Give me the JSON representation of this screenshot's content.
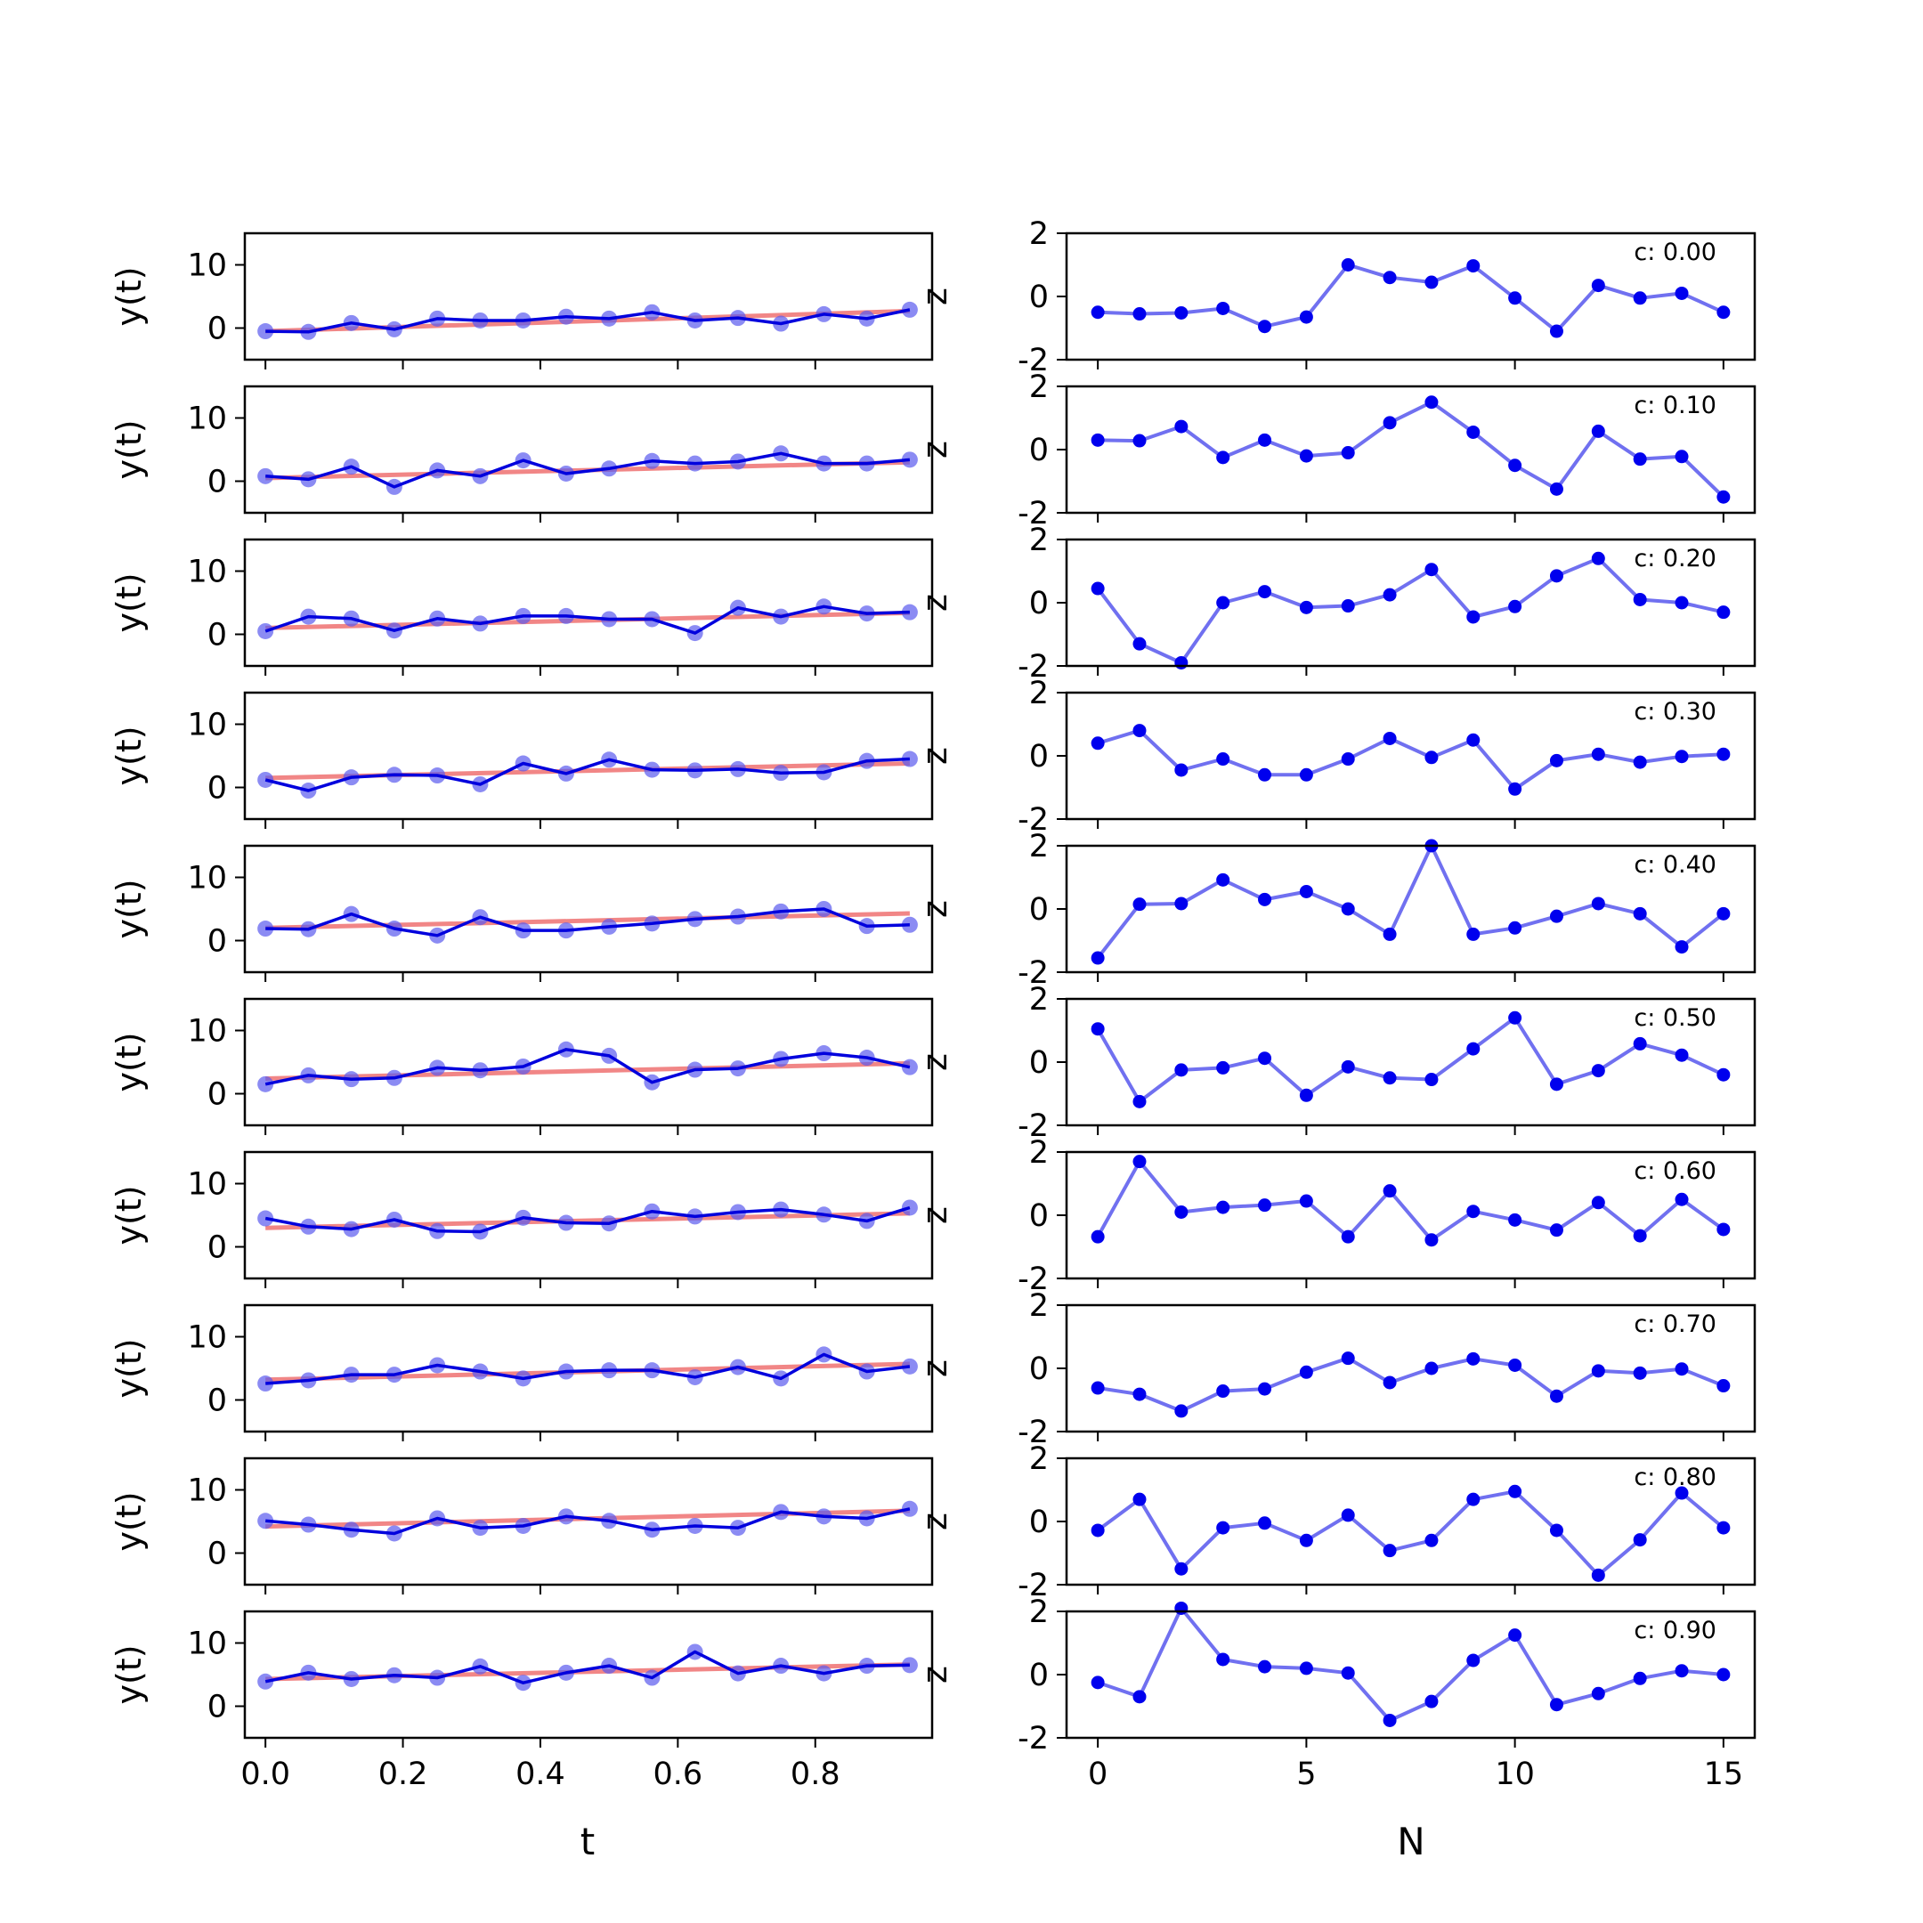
{
  "chart_data": {
    "type": "line",
    "layout": "10 rows x 2 columns of subplots",
    "left_column": {
      "xlabel": "t",
      "ylabel": "y(t)",
      "xlim": [
        -0.03,
        0.97
      ],
      "ylim": [
        -5,
        15
      ],
      "xticks": [
        "0.0",
        "0.2",
        "0.4",
        "0.6",
        "0.8"
      ],
      "yticks": [
        "0",
        "10"
      ],
      "series_styles": {
        "fit": {
          "color": "#f08080",
          "kind": "line"
        },
        "observed": {
          "color": "#0000dd",
          "kind": "line-with-markers"
        }
      }
    },
    "right_column": {
      "xlabel": "N",
      "ylabel": "z",
      "xlim": [
        -0.75,
        15.75
      ],
      "ylim": [
        -2,
        2
      ],
      "xticks": [
        "0",
        "5",
        "10",
        "15"
      ],
      "yticks": [
        "-2",
        "0",
        "2"
      ],
      "line_color": "#7070f0",
      "marker_color": "#0000ee"
    },
    "t": [
      0.0,
      0.0625,
      0.125,
      0.1875,
      0.25,
      0.3125,
      0.375,
      0.4375,
      0.5,
      0.5625,
      0.625,
      0.6875,
      0.75,
      0.8125,
      0.875,
      0.9375
    ],
    "N": [
      0,
      1,
      2,
      3,
      4,
      5,
      6,
      7,
      8,
      9,
      10,
      11,
      12,
      13,
      14,
      15
    ],
    "rows": [
      {
        "c_label": "c: 0.00",
        "fit": [
          -0.5,
          2.7
        ],
        "y": [
          -0.5,
          -0.6,
          0.8,
          -0.2,
          1.5,
          1.2,
          1.2,
          1.8,
          1.5,
          2.5,
          1.2,
          1.6,
          0.7,
          2.2,
          1.5,
          2.9
        ],
        "z": [
          -0.5,
          -0.55,
          -0.52,
          -0.38,
          -0.95,
          -0.65,
          1.0,
          0.6,
          0.45,
          0.97,
          -0.05,
          -1.1,
          0.35,
          -0.05,
          0.1,
          -0.5
        ]
      },
      {
        "c_label": "c: 0.10",
        "fit": [
          0.5,
          3.0
        ],
        "y": [
          0.8,
          0.3,
          2.3,
          -0.9,
          1.7,
          0.8,
          3.3,
          1.2,
          2.0,
          3.2,
          2.8,
          3.1,
          4.4,
          2.8,
          2.8,
          3.4
        ],
        "z": [
          0.3,
          0.28,
          0.73,
          -0.25,
          0.3,
          -0.2,
          -0.1,
          0.85,
          1.5,
          0.55,
          -0.5,
          -1.25,
          0.58,
          -0.3,
          -0.22,
          -1.5
        ]
      },
      {
        "c_label": "c: 0.20",
        "fit": [
          1.0,
          3.4
        ],
        "y": [
          0.5,
          2.8,
          2.5,
          0.6,
          2.5,
          1.7,
          2.9,
          2.9,
          2.4,
          2.4,
          0.2,
          4.2,
          2.8,
          4.4,
          3.3,
          3.5
        ],
        "z": [
          0.45,
          -1.3,
          -1.9,
          0.0,
          0.35,
          -0.15,
          -0.1,
          0.25,
          1.05,
          -0.45,
          -0.12,
          0.85,
          1.4,
          0.1,
          0.0,
          -0.3
        ]
      },
      {
        "c_label": "c: 0.30",
        "fit": [
          1.5,
          3.8
        ],
        "y": [
          1.2,
          -0.5,
          1.6,
          2.0,
          1.9,
          0.5,
          3.8,
          2.2,
          4.4,
          2.8,
          2.7,
          2.9,
          2.3,
          2.4,
          4.2,
          4.5
        ],
        "z": [
          0.4,
          0.8,
          -0.45,
          -0.1,
          -0.6,
          -0.6,
          -0.1,
          0.55,
          -0.05,
          0.5,
          -1.05,
          -0.15,
          0.05,
          -0.2,
          -0.02,
          0.05
        ]
      },
      {
        "c_label": "c: 0.40",
        "fit": [
          2.0,
          4.3
        ],
        "y": [
          1.9,
          1.8,
          4.2,
          1.9,
          0.8,
          3.7,
          1.6,
          1.6,
          2.2,
          2.7,
          3.4,
          3.8,
          4.6,
          5.0,
          2.3,
          2.5
        ],
        "z": [
          -1.55,
          0.15,
          0.17,
          0.92,
          0.3,
          0.55,
          0.0,
          -0.8,
          2.0,
          -0.8,
          -0.6,
          -0.23,
          0.17,
          -0.15,
          -1.2,
          -0.15
        ]
      },
      {
        "c_label": "c: 0.50",
        "fit": [
          2.4,
          4.8
        ],
        "y": [
          1.5,
          2.9,
          2.3,
          2.5,
          4.1,
          3.7,
          4.3,
          7.0,
          6.0,
          1.8,
          3.8,
          4.0,
          5.5,
          6.4,
          5.7,
          4.2
        ],
        "z": [
          1.05,
          -1.25,
          -0.25,
          -0.18,
          0.12,
          -1.05,
          -0.15,
          -0.5,
          -0.55,
          0.42,
          1.4,
          -0.7,
          -0.27,
          0.58,
          0.22,
          -0.4
        ]
      },
      {
        "c_label": "c: 0.60",
        "fit": [
          3.0,
          5.3
        ],
        "y": [
          4.5,
          3.2,
          2.8,
          4.3,
          2.5,
          2.4,
          4.6,
          3.8,
          3.7,
          5.6,
          4.8,
          5.5,
          5.9,
          5.1,
          4.1,
          6.2
        ],
        "z": [
          -0.68,
          1.7,
          0.1,
          0.25,
          0.32,
          0.45,
          -0.68,
          0.77,
          -0.78,
          0.12,
          -0.15,
          -0.47,
          0.4,
          -0.65,
          0.5,
          -0.45
        ]
      },
      {
        "c_label": "c: 0.70",
        "fit": [
          3.2,
          5.7
        ],
        "y": [
          2.6,
          3.1,
          4.0,
          4.0,
          5.5,
          4.5,
          3.4,
          4.5,
          4.7,
          4.7,
          3.6,
          5.2,
          3.4,
          7.2,
          4.5,
          5.3
        ],
        "z": [
          -0.62,
          -0.82,
          -1.35,
          -0.72,
          -0.65,
          -0.12,
          0.32,
          -0.45,
          0.0,
          0.3,
          0.1,
          -0.88,
          -0.08,
          -0.15,
          -0.02,
          -0.55
        ]
      },
      {
        "c_label": "c: 0.80",
        "fit": [
          4.2,
          6.7
        ],
        "y": [
          5.1,
          4.5,
          3.7,
          3.1,
          5.5,
          4.0,
          4.3,
          5.8,
          5.1,
          3.7,
          4.3,
          4.0,
          6.5,
          5.8,
          5.5,
          7.0
        ],
        "z": [
          -0.28,
          0.7,
          -1.5,
          -0.2,
          -0.05,
          -0.6,
          0.2,
          -0.92,
          -0.6,
          0.7,
          0.95,
          -0.28,
          -1.7,
          -0.58,
          0.9,
          -0.2
        ]
      },
      {
        "c_label": "c: 0.90",
        "fit": [
          4.3,
          6.6
        ],
        "y": [
          3.9,
          5.3,
          4.3,
          4.9,
          4.5,
          6.3,
          3.7,
          5.3,
          6.4,
          4.5,
          8.6,
          5.2,
          6.4,
          5.2,
          6.4,
          6.5
        ],
        "z": [
          -0.25,
          -0.7,
          2.1,
          0.48,
          0.25,
          0.2,
          0.05,
          -1.45,
          -0.85,
          0.45,
          1.25,
          -0.95,
          -0.6,
          -0.12,
          0.12,
          0.0
        ]
      }
    ]
  }
}
